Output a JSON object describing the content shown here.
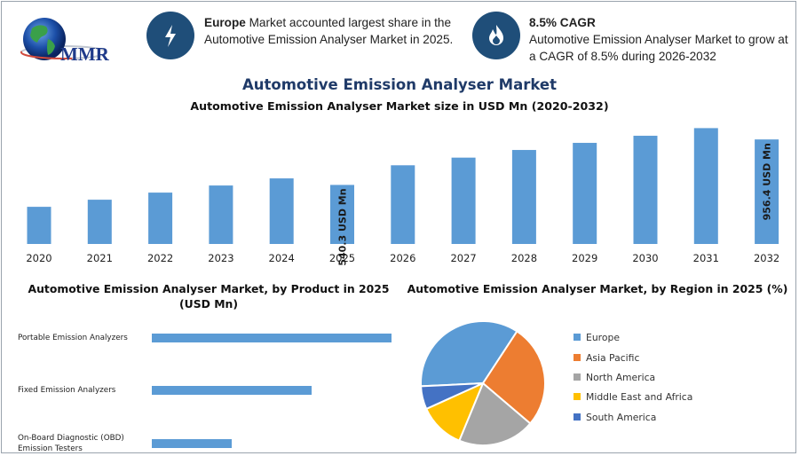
{
  "logo": {
    "text": "MMR"
  },
  "stats": [
    {
      "highlight": "Europe",
      "text": " Market accounted largest share in the Automotive Emission Analyser Market in 2025.",
      "icon": "lightning-icon"
    },
    {
      "highlight": "8.5% CAGR",
      "text": "Automotive Emission Analyser Market to grow at a CAGR of 8.5% during 2026-2032",
      "icon": "flame-icon"
    }
  ],
  "title": "Automotive Emission Analyser Market",
  "chart_data": [
    {
      "type": "bar",
      "title": "Automotive Emission Analyser Market size in USD Mn (2020-2032)",
      "categories": [
        "2020",
        "2021",
        "2022",
        "2023",
        "2024",
        "2025",
        "2026",
        "2027",
        "2028",
        "2029",
        "2030",
        "2031",
        "2032"
      ],
      "values": [
        340,
        405,
        470,
        535,
        600,
        540.3,
        720,
        790,
        860,
        925,
        990,
        1060,
        956.4
      ],
      "data_labels": {
        "2025": "540.3 USD Mn",
        "2032": "956.4 USD Mn"
      },
      "color": "#5b9bd5",
      "grid": false
    },
    {
      "type": "bar",
      "orientation": "horizontal",
      "title": "Automotive Emission Analyser Market, by Product in 2025 (USD Mn)",
      "categories": [
        "Portable Emission Analyzers",
        "Fixed Emission Analyzers",
        "On-Board Diagnostic (OBD) Emission Testers"
      ],
      "values": [
        270,
        180,
        90
      ],
      "color": "#5b9bd5"
    },
    {
      "type": "pie",
      "title": "Automotive Emission Analyser Market, by Region in 2025 (%)",
      "categories": [
        "Europe",
        "Asia Pacific",
        "North America",
        "Middle East and Africa",
        "South America"
      ],
      "values": [
        35,
        27,
        20,
        12,
        6
      ],
      "colors": [
        "#5b9bd5",
        "#ed7d31",
        "#a5a5a5",
        "#ffc000",
        "#4472c4"
      ],
      "legend": "right"
    }
  ]
}
